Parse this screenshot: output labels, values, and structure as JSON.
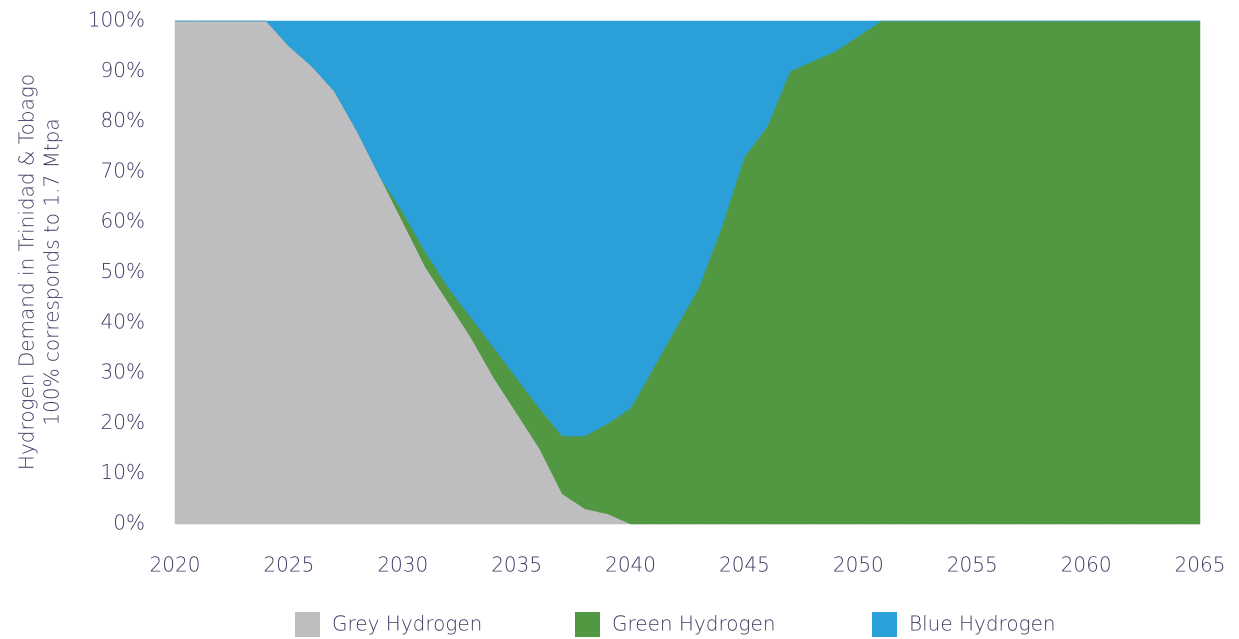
{
  "chart_data": {
    "type": "stacked_area",
    "y_label": [
      "Hydrogen Demand in Trinidad & Tobago",
      "100% corresponds to 1.7 Mtpa"
    ],
    "x": [
      2020,
      2021,
      2022,
      2023,
      2024,
      2025,
      2026,
      2027,
      2028,
      2029,
      2030,
      2031,
      2032,
      2033,
      2034,
      2035,
      2036,
      2037,
      2038,
      2039,
      2040,
      2041,
      2042,
      2043,
      2044,
      2045,
      2046,
      2047,
      2048,
      2049,
      2050,
      2051,
      2052,
      2053,
      2054,
      2055,
      2056,
      2057,
      2058,
      2059,
      2060,
      2061,
      2062,
      2063,
      2064,
      2065
    ],
    "series": [
      {
        "name": "Grey Hydrogen",
        "color": "#bebec0",
        "values": [
          100,
          100,
          100,
          100,
          100,
          95,
          91,
          86,
          78,
          69,
          60,
          51,
          44,
          37,
          29,
          22,
          15,
          6,
          3,
          2,
          0,
          0,
          0,
          0,
          0,
          0,
          0,
          0,
          0,
          0,
          0,
          0,
          0,
          0,
          0,
          0,
          0,
          0,
          0,
          0,
          0,
          0,
          0,
          0,
          0,
          0
        ]
      },
      {
        "name": "Green Hydrogen",
        "color": "#529843",
        "values": [
          0,
          0,
          0,
          0,
          0,
          0,
          0,
          0,
          0,
          0,
          2,
          3,
          3,
          4,
          6,
          7,
          8,
          11.5,
          14.5,
          18,
          23,
          31,
          39,
          47,
          59,
          73,
          79,
          90,
          92,
          94,
          97,
          100,
          100,
          100,
          100,
          100,
          100,
          100,
          100,
          100,
          100,
          100,
          100,
          100,
          100,
          100
        ]
      },
      {
        "name": "Blue Hydrogen",
        "color": "#2ba0d8",
        "values": [
          0,
          0,
          0,
          0,
          0,
          5,
          9,
          14,
          22,
          31,
          38,
          46,
          53,
          59,
          65,
          71,
          77,
          82.5,
          82.5,
          80,
          77,
          69,
          61,
          53,
          41,
          27,
          21,
          10,
          8,
          6,
          3,
          0,
          0,
          0,
          0,
          0,
          0,
          0,
          0,
          0,
          0,
          0,
          0,
          0,
          0,
          0
        ]
      }
    ],
    "xlim": [
      2020,
      2065
    ],
    "xticks": [
      2020,
      2025,
      2030,
      2035,
      2040,
      2045,
      2050,
      2055,
      2060,
      2065
    ],
    "ylim": [
      0,
      100
    ],
    "yticks": [
      {
        "value": 0,
        "label": "0%"
      },
      {
        "value": 10,
        "label": "10%"
      },
      {
        "value": 20,
        "label": "20%"
      },
      {
        "value": 30,
        "label": "30%"
      },
      {
        "value": 40,
        "label": "40%"
      },
      {
        "value": 50,
        "label": "50%"
      },
      {
        "value": 60,
        "label": "60%"
      },
      {
        "value": 70,
        "label": "70%"
      },
      {
        "value": 80,
        "label": "80%"
      },
      {
        "value": 90,
        "label": "90%"
      },
      {
        "value": 100,
        "label": "100%"
      }
    ],
    "grid": false,
    "legend": "bottom"
  }
}
